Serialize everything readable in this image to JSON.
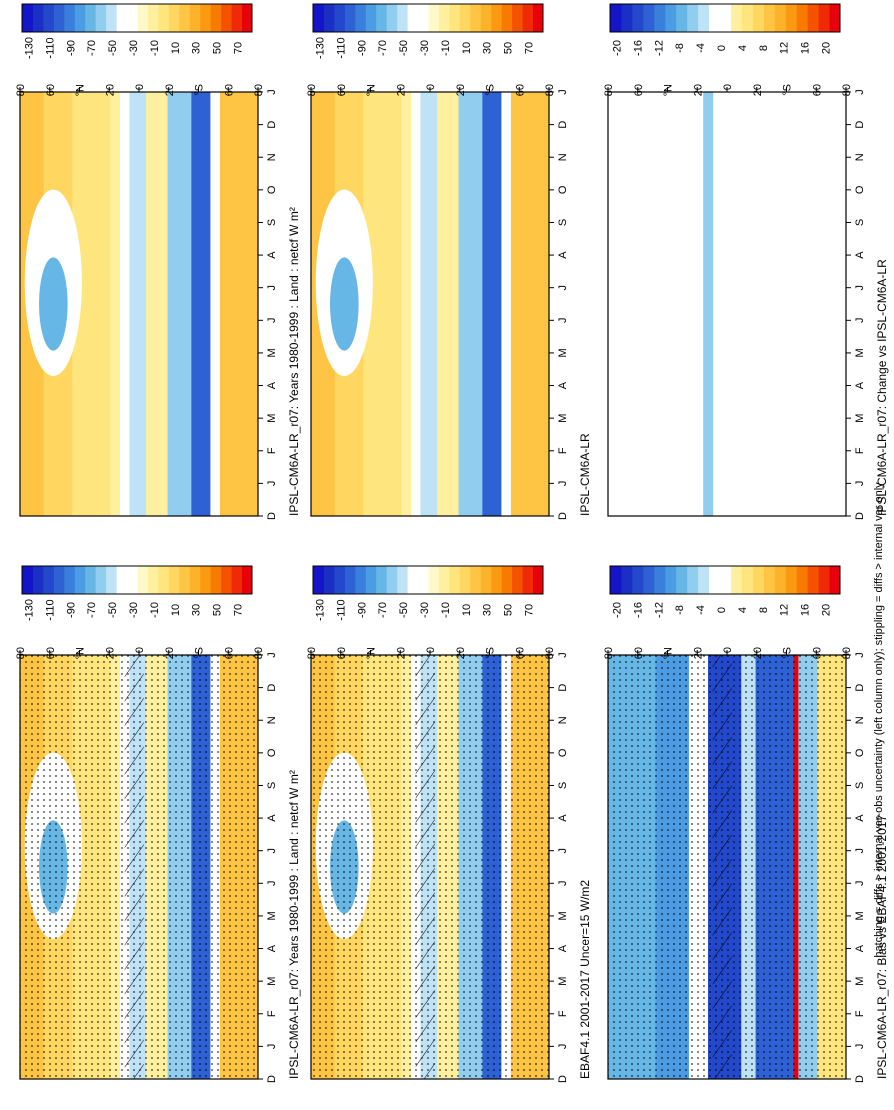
{
  "footnote": "hatching = diffs > internal var-obs uncertainty (left column only); stippling = diffs > internal var only",
  "chart_data": [
    {
      "id": "model-1980-1999-left",
      "type": "heatmap",
      "title": "IPSL-CM6A-LR_r07: Years 1980-1999 : Land : netcf W m²",
      "x_tick_labels": [
        "D",
        "J",
        "F",
        "M",
        "A",
        "M",
        "J",
        "J",
        "A",
        "S",
        "O",
        "N",
        "D",
        "J"
      ],
      "y_tick_labels": [
        "80",
        "60",
        "°N",
        "20",
        "0",
        "20",
        "°S",
        "60",
        "80"
      ],
      "colorbar_ticks": [
        "70",
        "50",
        "30",
        "10",
        "-10",
        "-30",
        "-50",
        "-70",
        "-90",
        "-110",
        "-130"
      ]
    },
    {
      "id": "model-1980-1999-right",
      "type": "heatmap",
      "title": "IPSL-CM6A-LR_r07: Years 1980-1999 : Land : netcf W m²",
      "x_tick_labels": [
        "D",
        "J",
        "F",
        "M",
        "A",
        "M",
        "J",
        "J",
        "A",
        "S",
        "O",
        "N",
        "D",
        "J"
      ],
      "y_tick_labels": [
        "80",
        "60",
        "°N",
        "20",
        "0",
        "20",
        "°S",
        "60",
        "80"
      ],
      "colorbar_ticks": [
        "70",
        "50",
        "30",
        "10",
        "-10",
        "-30",
        "-50",
        "-70",
        "-90",
        "-110",
        "-130"
      ]
    },
    {
      "id": "obs-ebaf",
      "type": "heatmap",
      "title": "EBAF4.1 2001-2017 Uncer=15 W/m2",
      "x_tick_labels": [
        "D",
        "J",
        "F",
        "M",
        "A",
        "M",
        "J",
        "J",
        "A",
        "S",
        "O",
        "N",
        "D",
        "J"
      ],
      "y_tick_labels": [
        "80",
        "60",
        "°N",
        "20",
        "0",
        "20",
        "°S",
        "60",
        "80"
      ],
      "colorbar_ticks": [
        "70",
        "50",
        "30",
        "10",
        "-10",
        "-30",
        "-50",
        "-70",
        "-90",
        "-110",
        "-130"
      ]
    },
    {
      "id": "model-ensemble",
      "type": "heatmap",
      "title": "IPSL-CM6A-LR",
      "x_tick_labels": [
        "D",
        "J",
        "F",
        "M",
        "A",
        "M",
        "J",
        "J",
        "A",
        "S",
        "O",
        "N",
        "D",
        "J"
      ],
      "y_tick_labels": [
        "80",
        "60",
        "°N",
        "20",
        "0",
        "20",
        "°S",
        "60",
        "80"
      ],
      "colorbar_ticks": [
        "70",
        "50",
        "30",
        "10",
        "-10",
        "-30",
        "-50",
        "-70",
        "-90",
        "-110",
        "-130"
      ]
    },
    {
      "id": "bias",
      "type": "heatmap",
      "title": "IPSL-CM6A-LR_r07: Bias vs EBAF4.1 2001-2017",
      "x_tick_labels": [
        "D",
        "J",
        "F",
        "M",
        "A",
        "M",
        "J",
        "J",
        "A",
        "S",
        "O",
        "N",
        "D",
        "J"
      ],
      "y_tick_labels": [
        "80",
        "60",
        "°N",
        "20",
        "0",
        "20",
        "°S",
        "60",
        "80"
      ],
      "colorbar_ticks": [
        "20",
        "16",
        "12",
        "8",
        "4",
        "0",
        "-4",
        "-8",
        "-12",
        "-16",
        "-20"
      ]
    },
    {
      "id": "change",
      "type": "heatmap",
      "title": "IPSL-CM6A-LR_r07: Change vs IPSL-CM6A-LR",
      "x_tick_labels": [
        "D",
        "J",
        "F",
        "M",
        "A",
        "M",
        "J",
        "J",
        "A",
        "S",
        "O",
        "N",
        "D",
        "J"
      ],
      "y_tick_labels": [
        "80",
        "60",
        "°N",
        "20",
        "0",
        "20",
        "°S",
        "60",
        "80"
      ],
      "colorbar_ticks": [
        "20",
        "16",
        "12",
        "8",
        "4",
        "0",
        "-4",
        "-8",
        "-12",
        "-16",
        "-20"
      ]
    }
  ],
  "colorscale": {
    "main": [
      "#e8000b",
      "#f02a06",
      "#f55200",
      "#f87a00",
      "#fb9a12",
      "#fdb22c",
      "#fec545",
      "#ffd760",
      "#ffe57d",
      "#fff09f",
      "#fff8c8",
      "#ffffff",
      "#ffffff",
      "#bfe3f6",
      "#91cdef",
      "#66b7e6",
      "#4b9ce2",
      "#3b7fdc",
      "#2e62d4",
      "#2448cc",
      "#1a30c4",
      "#1414c8"
    ],
    "diff": [
      "#e8000b",
      "#f02a06",
      "#f55200",
      "#f87a00",
      "#fb9a12",
      "#fdb22c",
      "#fec545",
      "#ffd760",
      "#ffe57d",
      "#fff09f",
      "#ffffff",
      "#ffffff",
      "#bfe3f6",
      "#91cdef",
      "#66b7e6",
      "#4b9ce2",
      "#3b7fdc",
      "#2e62d4",
      "#2448cc",
      "#1a30c4",
      "#1414c8"
    ]
  }
}
